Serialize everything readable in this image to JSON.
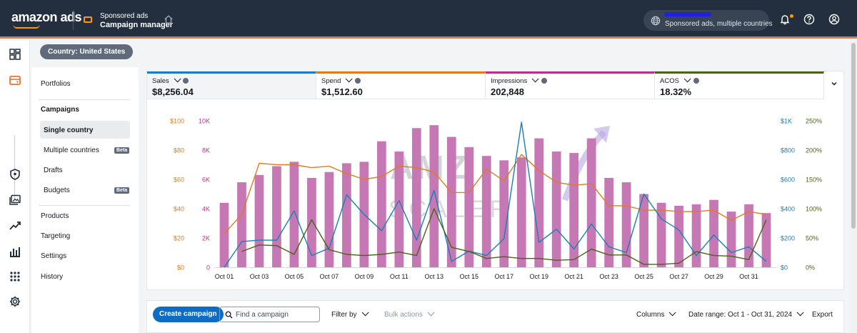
{
  "header": {
    "logo": "amazon ads",
    "product_title": "Sponsored ads",
    "product_subtitle": "Campaign manager",
    "account_text": "Sponsored ads, multiple countries",
    "icons": [
      "ads-product-icon",
      "home-icon",
      "globe-icon",
      "bell-icon",
      "help-icon",
      "user-icon"
    ]
  },
  "country_chip": "Country: United States",
  "sidebar": {
    "items": [
      {
        "label": "Portfolios"
      },
      {
        "label": "Campaigns"
      },
      {
        "label": "Single country"
      },
      {
        "label": "Multiple countries",
        "badge": "Beta"
      },
      {
        "label": "Drafts"
      },
      {
        "label": "Budgets",
        "badge": "Beta"
      },
      {
        "label": "Products"
      },
      {
        "label": "Targeting"
      },
      {
        "label": "Settings"
      },
      {
        "label": "History"
      }
    ]
  },
  "metrics": [
    {
      "name": "Sales",
      "value": "$8,256.04",
      "color": "#1a7fb4"
    },
    {
      "name": "Spend",
      "value": "$1,512.60",
      "color": "#e07b1f"
    },
    {
      "name": "Impressions",
      "value": "202,848",
      "color": "#b0338e"
    },
    {
      "name": "ACOS",
      "value": "18.32%",
      "color": "#4b6315"
    }
  ],
  "chart_data": {
    "type": "bar+line",
    "x_ticks": [
      "Oct 01",
      "Oct 03",
      "Oct 05",
      "Oct 07",
      "Oct 09",
      "Oct 11",
      "Oct 13",
      "Oct 15",
      "Oct 17",
      "Oct 19",
      "Oct 21",
      "Oct 23",
      "Oct 25",
      "Oct 27",
      "Oct 29",
      "Oct 31"
    ],
    "axes": {
      "spend": {
        "ticks": [
          "$0",
          "$20",
          "$40",
          "$60",
          "$80",
          "$100"
        ],
        "range": [
          0,
          100
        ],
        "color": "#e07b1f"
      },
      "impressions": {
        "ticks": [
          "0",
          "2K",
          "4K",
          "6K",
          "8K",
          "10K"
        ],
        "range": [
          0,
          10000
        ],
        "color": "#b0338e"
      },
      "sales": {
        "ticks": [
          "$0",
          "$200",
          "$400",
          "$600",
          "$800",
          "$1K"
        ],
        "range": [
          0,
          1000
        ],
        "color": "#1a7fb4"
      },
      "acos": {
        "ticks": [
          "0%",
          "50%",
          "100%",
          "150%",
          "200%",
          "250%"
        ],
        "range": [
          0,
          250
        ],
        "color": "#4b6315"
      }
    },
    "series": [
      {
        "name": "Impressions",
        "kind": "bar",
        "color": "#c678b4",
        "values": [
          4400,
          5800,
          6300,
          6900,
          7200,
          6100,
          6500,
          7100,
          7200,
          8600,
          7900,
          9500,
          9700,
          8900,
          8200,
          7600,
          7300,
          7500,
          8800,
          7900,
          7800,
          8800,
          6100,
          5800,
          5000,
          4400,
          4200,
          4300,
          4600,
          3800,
          4300,
          3700
        ]
      },
      {
        "name": "Spend",
        "kind": "line",
        "color": "#e07b1f",
        "values": [
          23,
          36,
          71,
          70,
          70,
          68,
          69,
          64,
          60,
          62,
          69,
          68,
          65,
          51,
          51,
          67,
          59,
          77,
          66,
          58,
          56,
          57,
          42,
          42,
          39,
          39,
          38,
          38,
          39,
          32,
          38,
          36
        ]
      },
      {
        "name": "Sales",
        "kind": "line",
        "color": "#1a7fb4",
        "values": [
          0,
          175,
          185,
          185,
          385,
          80,
          130,
          495,
          360,
          250,
          455,
          185,
          525,
          40,
          110,
          80,
          195,
          990,
          170,
          260,
          125,
          295,
          140,
          100,
          500,
          330,
          255,
          80,
          220,
          100,
          140,
          40
        ]
      },
      {
        "name": "ACOS",
        "kind": "line",
        "color": "#4b6315",
        "values": [
          0,
          27,
          38,
          37,
          22,
          81,
          30,
          22,
          20,
          22,
          26,
          20,
          100,
          34,
          27,
          15,
          18,
          15,
          15,
          12,
          13,
          31,
          21,
          21,
          5,
          5,
          7,
          27,
          20,
          19,
          13,
          81
        ]
      }
    ]
  },
  "watermark": {
    "line1": "AMZ",
    "line2": "SCALER"
  },
  "toolbar": {
    "create_label": "Create campaign",
    "search_placeholder": "Find a campaign",
    "filter_label": "Filter by",
    "bulk_label": "Bulk actions",
    "columns_label": "Columns",
    "date_label": "Date range: Oct 1 - Oct 31, 2024",
    "export_label": "Export"
  }
}
